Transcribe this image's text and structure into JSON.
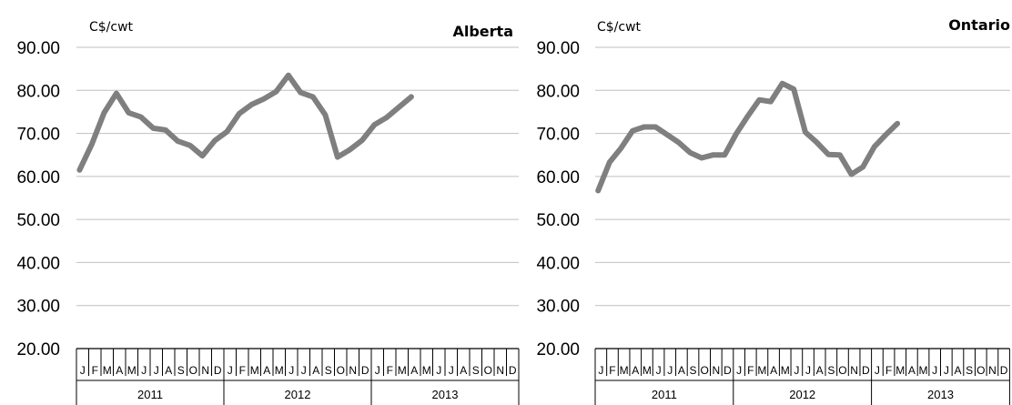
{
  "chart_data": [
    {
      "type": "line",
      "title": "Alberta",
      "ylabel": "C$/cwt",
      "ylim": [
        20,
        90
      ],
      "yticks": [
        "90.00",
        "80.00",
        "70.00",
        "60.00",
        "50.00",
        "40.00",
        "30.00",
        "20.00"
      ],
      "month_labels": [
        "J",
        "F",
        "M",
        "A",
        "M",
        "J",
        "J",
        "A",
        "S",
        "O",
        "N",
        "D",
        "J",
        "F",
        "M",
        "A",
        "M",
        "J",
        "J",
        "A",
        "S",
        "O",
        "N",
        "D",
        "J",
        "F",
        "M",
        "A",
        "M",
        "J",
        "J",
        "A",
        "S",
        "O",
        "N",
        "D"
      ],
      "year_labels": [
        "2011",
        "2012",
        "2013"
      ],
      "grid": true,
      "series": [
        {
          "values": [
            61.5,
            67.5,
            74.8,
            79.3,
            74.8,
            73.8,
            71.2,
            70.8,
            68.2,
            67.2,
            64.8,
            68.3,
            70.4,
            74.6,
            76.7,
            78.0,
            79.7,
            83.5,
            79.5,
            78.5,
            74.3,
            64.5,
            66.2,
            68.4,
            72.0,
            73.7,
            76.1,
            78.5
          ]
        }
      ]
    },
    {
      "type": "line",
      "title": "Ontario",
      "ylabel": "C$/cwt",
      "ylim": [
        20,
        90
      ],
      "yticks": [
        "90.00",
        "80.00",
        "70.00",
        "60.00",
        "50.00",
        "40.00",
        "30.00",
        "20.00"
      ],
      "month_labels": [
        "J",
        "F",
        "M",
        "A",
        "M",
        "J",
        "J",
        "A",
        "S",
        "O",
        "N",
        "D",
        "J",
        "F",
        "M",
        "A",
        "M",
        "J",
        "J",
        "A",
        "S",
        "O",
        "N",
        "D",
        "J",
        "F",
        "M",
        "A",
        "M",
        "J",
        "J",
        "A",
        "S",
        "O",
        "N",
        "D"
      ],
      "year_labels": [
        "2011",
        "2012",
        "2013"
      ],
      "grid": true,
      "series": [
        {
          "values": [
            56.7,
            63.3,
            66.6,
            70.6,
            71.5,
            71.5,
            69.7,
            67.9,
            65.5,
            64.3,
            65.0,
            65.0,
            69.9,
            74.0,
            77.8,
            77.4,
            81.6,
            80.3,
            70.3,
            67.9,
            65.1,
            65.0,
            60.5,
            62.2,
            66.9,
            69.7,
            72.3
          ]
        }
      ]
    }
  ],
  "colors": {
    "line": "#7f7f7f",
    "grid": "#bfbfbf",
    "axis": "#000000"
  }
}
